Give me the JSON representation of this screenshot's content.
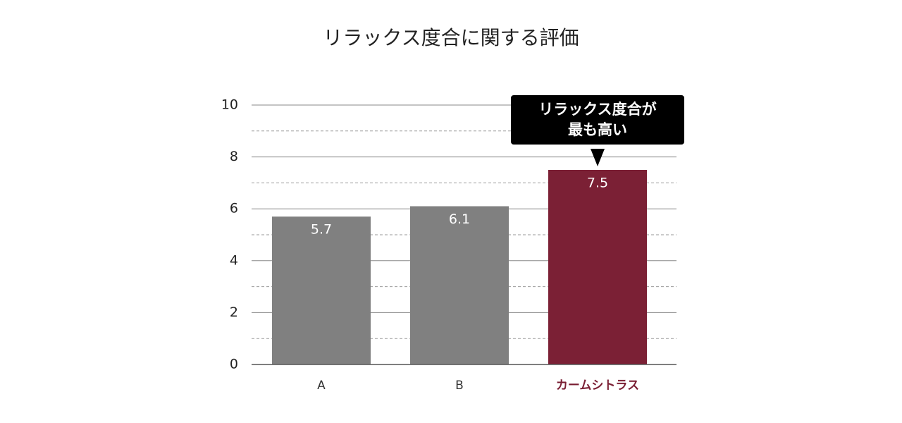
{
  "chart_data": {
    "type": "bar",
    "title": "リラックス度合に関する評価",
    "categories": [
      "A",
      "B",
      "カームシトラス"
    ],
    "values": [
      5.7,
      6.1,
      7.5
    ],
    "colors": [
      "#808080",
      "#808080",
      "#7b2035"
    ],
    "label_colors": [
      "#333333",
      "#333333",
      "#7b2035"
    ],
    "ylim": [
      0,
      10
    ],
    "yticks": [
      0,
      2,
      4,
      6,
      8,
      10
    ],
    "minor_yticks": [
      1,
      3,
      5,
      7,
      9
    ],
    "grid": true,
    "annotation": {
      "text": "リラックス度合が\n最も高い",
      "target": "カームシトラス"
    }
  }
}
